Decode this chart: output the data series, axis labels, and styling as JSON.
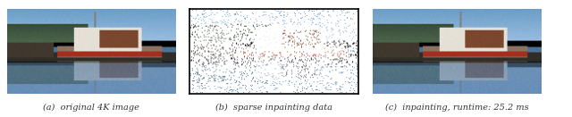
{
  "figsize": [
    6.4,
    1.31
  ],
  "dpi": 100,
  "background_color": "#ffffff",
  "captions": [
    "(a)  original 4K image",
    "(b)  sparse inpainting data",
    "(c)  inpainting, runtime: 25.2 ms"
  ],
  "caption_fontsize": 7.0,
  "caption_color": "#333333",
  "image_border_color": "#000000"
}
